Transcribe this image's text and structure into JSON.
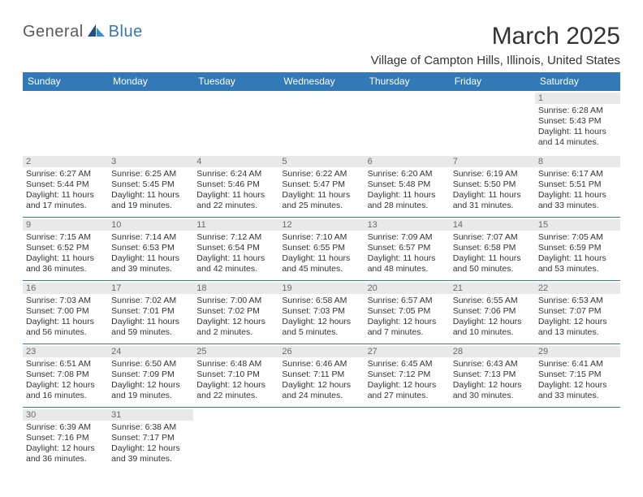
{
  "brand": {
    "part1": "General",
    "part2": "Blue"
  },
  "title": "March 2025",
  "location": "Village of Campton Hills, Illinois, United States",
  "colors": {
    "header_bg": "#3179b7",
    "header_text": "#ffffff",
    "daynum_bg": "#e9e9e9",
    "daynum_text": "#6a6a6a",
    "body_text": "#333333",
    "rule": "#3179b7",
    "background": "#ffffff",
    "logo_gray": "#5a5a5a",
    "logo_blue": "#3179b7"
  },
  "typography": {
    "title_fontsize": 30,
    "location_fontsize": 15,
    "dow_fontsize": 12,
    "daynum_fontsize": 11,
    "cell_fontsize": 10.5
  },
  "dow": [
    "Sunday",
    "Monday",
    "Tuesday",
    "Wednesday",
    "Thursday",
    "Friday",
    "Saturday"
  ],
  "weeks": [
    [
      null,
      null,
      null,
      null,
      null,
      null,
      {
        "n": "1",
        "sr": "Sunrise: 6:28 AM",
        "ss": "Sunset: 5:43 PM",
        "dl1": "Daylight: 11 hours",
        "dl2": "and 14 minutes."
      }
    ],
    [
      {
        "n": "2",
        "sr": "Sunrise: 6:27 AM",
        "ss": "Sunset: 5:44 PM",
        "dl1": "Daylight: 11 hours",
        "dl2": "and 17 minutes."
      },
      {
        "n": "3",
        "sr": "Sunrise: 6:25 AM",
        "ss": "Sunset: 5:45 PM",
        "dl1": "Daylight: 11 hours",
        "dl2": "and 19 minutes."
      },
      {
        "n": "4",
        "sr": "Sunrise: 6:24 AM",
        "ss": "Sunset: 5:46 PM",
        "dl1": "Daylight: 11 hours",
        "dl2": "and 22 minutes."
      },
      {
        "n": "5",
        "sr": "Sunrise: 6:22 AM",
        "ss": "Sunset: 5:47 PM",
        "dl1": "Daylight: 11 hours",
        "dl2": "and 25 minutes."
      },
      {
        "n": "6",
        "sr": "Sunrise: 6:20 AM",
        "ss": "Sunset: 5:48 PM",
        "dl1": "Daylight: 11 hours",
        "dl2": "and 28 minutes."
      },
      {
        "n": "7",
        "sr": "Sunrise: 6:19 AM",
        "ss": "Sunset: 5:50 PM",
        "dl1": "Daylight: 11 hours",
        "dl2": "and 31 minutes."
      },
      {
        "n": "8",
        "sr": "Sunrise: 6:17 AM",
        "ss": "Sunset: 5:51 PM",
        "dl1": "Daylight: 11 hours",
        "dl2": "and 33 minutes."
      }
    ],
    [
      {
        "n": "9",
        "sr": "Sunrise: 7:15 AM",
        "ss": "Sunset: 6:52 PM",
        "dl1": "Daylight: 11 hours",
        "dl2": "and 36 minutes."
      },
      {
        "n": "10",
        "sr": "Sunrise: 7:14 AM",
        "ss": "Sunset: 6:53 PM",
        "dl1": "Daylight: 11 hours",
        "dl2": "and 39 minutes."
      },
      {
        "n": "11",
        "sr": "Sunrise: 7:12 AM",
        "ss": "Sunset: 6:54 PM",
        "dl1": "Daylight: 11 hours",
        "dl2": "and 42 minutes."
      },
      {
        "n": "12",
        "sr": "Sunrise: 7:10 AM",
        "ss": "Sunset: 6:55 PM",
        "dl1": "Daylight: 11 hours",
        "dl2": "and 45 minutes."
      },
      {
        "n": "13",
        "sr": "Sunrise: 7:09 AM",
        "ss": "Sunset: 6:57 PM",
        "dl1": "Daylight: 11 hours",
        "dl2": "and 48 minutes."
      },
      {
        "n": "14",
        "sr": "Sunrise: 7:07 AM",
        "ss": "Sunset: 6:58 PM",
        "dl1": "Daylight: 11 hours",
        "dl2": "and 50 minutes."
      },
      {
        "n": "15",
        "sr": "Sunrise: 7:05 AM",
        "ss": "Sunset: 6:59 PM",
        "dl1": "Daylight: 11 hours",
        "dl2": "and 53 minutes."
      }
    ],
    [
      {
        "n": "16",
        "sr": "Sunrise: 7:03 AM",
        "ss": "Sunset: 7:00 PM",
        "dl1": "Daylight: 11 hours",
        "dl2": "and 56 minutes."
      },
      {
        "n": "17",
        "sr": "Sunrise: 7:02 AM",
        "ss": "Sunset: 7:01 PM",
        "dl1": "Daylight: 11 hours",
        "dl2": "and 59 minutes."
      },
      {
        "n": "18",
        "sr": "Sunrise: 7:00 AM",
        "ss": "Sunset: 7:02 PM",
        "dl1": "Daylight: 12 hours",
        "dl2": "and 2 minutes."
      },
      {
        "n": "19",
        "sr": "Sunrise: 6:58 AM",
        "ss": "Sunset: 7:03 PM",
        "dl1": "Daylight: 12 hours",
        "dl2": "and 5 minutes."
      },
      {
        "n": "20",
        "sr": "Sunrise: 6:57 AM",
        "ss": "Sunset: 7:05 PM",
        "dl1": "Daylight: 12 hours",
        "dl2": "and 7 minutes."
      },
      {
        "n": "21",
        "sr": "Sunrise: 6:55 AM",
        "ss": "Sunset: 7:06 PM",
        "dl1": "Daylight: 12 hours",
        "dl2": "and 10 minutes."
      },
      {
        "n": "22",
        "sr": "Sunrise: 6:53 AM",
        "ss": "Sunset: 7:07 PM",
        "dl1": "Daylight: 12 hours",
        "dl2": "and 13 minutes."
      }
    ],
    [
      {
        "n": "23",
        "sr": "Sunrise: 6:51 AM",
        "ss": "Sunset: 7:08 PM",
        "dl1": "Daylight: 12 hours",
        "dl2": "and 16 minutes."
      },
      {
        "n": "24",
        "sr": "Sunrise: 6:50 AM",
        "ss": "Sunset: 7:09 PM",
        "dl1": "Daylight: 12 hours",
        "dl2": "and 19 minutes."
      },
      {
        "n": "25",
        "sr": "Sunrise: 6:48 AM",
        "ss": "Sunset: 7:10 PM",
        "dl1": "Daylight: 12 hours",
        "dl2": "and 22 minutes."
      },
      {
        "n": "26",
        "sr": "Sunrise: 6:46 AM",
        "ss": "Sunset: 7:11 PM",
        "dl1": "Daylight: 12 hours",
        "dl2": "and 24 minutes."
      },
      {
        "n": "27",
        "sr": "Sunrise: 6:45 AM",
        "ss": "Sunset: 7:12 PM",
        "dl1": "Daylight: 12 hours",
        "dl2": "and 27 minutes."
      },
      {
        "n": "28",
        "sr": "Sunrise: 6:43 AM",
        "ss": "Sunset: 7:13 PM",
        "dl1": "Daylight: 12 hours",
        "dl2": "and 30 minutes."
      },
      {
        "n": "29",
        "sr": "Sunrise: 6:41 AM",
        "ss": "Sunset: 7:15 PM",
        "dl1": "Daylight: 12 hours",
        "dl2": "and 33 minutes."
      }
    ],
    [
      {
        "n": "30",
        "sr": "Sunrise: 6:39 AM",
        "ss": "Sunset: 7:16 PM",
        "dl1": "Daylight: 12 hours",
        "dl2": "and 36 minutes."
      },
      {
        "n": "31",
        "sr": "Sunrise: 6:38 AM",
        "ss": "Sunset: 7:17 PM",
        "dl1": "Daylight: 12 hours",
        "dl2": "and 39 minutes."
      },
      null,
      null,
      null,
      null,
      null
    ]
  ]
}
